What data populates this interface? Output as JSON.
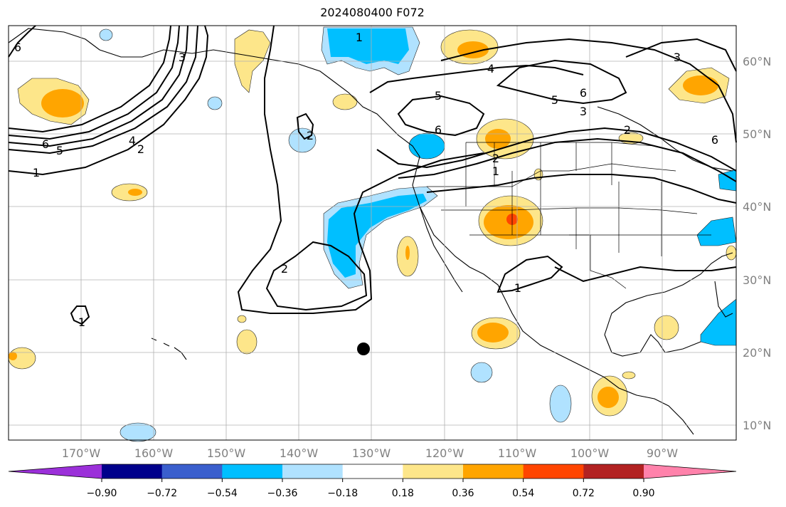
{
  "title": "2024080400 F072",
  "lon_labels": [
    "170°W",
    "160°W",
    "150°W",
    "140°W",
    "130°W",
    "120°W",
    "110°W",
    "100°W",
    "90°W"
  ],
  "lat_labels": [
    "60°N",
    "50°N",
    "40°N",
    "30°N",
    "20°N",
    "10°N"
  ],
  "colorbar": {
    "ticks": [
      "−0.90",
      "−0.72",
      "−0.54",
      "−0.36",
      "−0.18",
      "0.18",
      "0.36",
      "0.54",
      "0.72",
      "0.90"
    ],
    "colors": [
      "#9b30d9",
      "#00008b",
      "#3a5fcd",
      "#00bfff",
      "#b0e2ff",
      "#ffffff",
      "#fde68a",
      "#ffa500",
      "#ff4500",
      "#b22222",
      "#ff82ab"
    ]
  },
  "contour_labels": [
    "6",
    "3",
    "6",
    "5",
    "4",
    "2",
    "1",
    "1",
    "5",
    "6",
    "4",
    "5",
    "3",
    "6",
    "3",
    "2",
    "6",
    "2",
    "1",
    "2",
    "1",
    "1",
    "2"
  ],
  "colors": {
    "grid": "#b0b0b0",
    "axis_label": "#808080",
    "contour": "#000000",
    "coast": "#000000"
  }
}
